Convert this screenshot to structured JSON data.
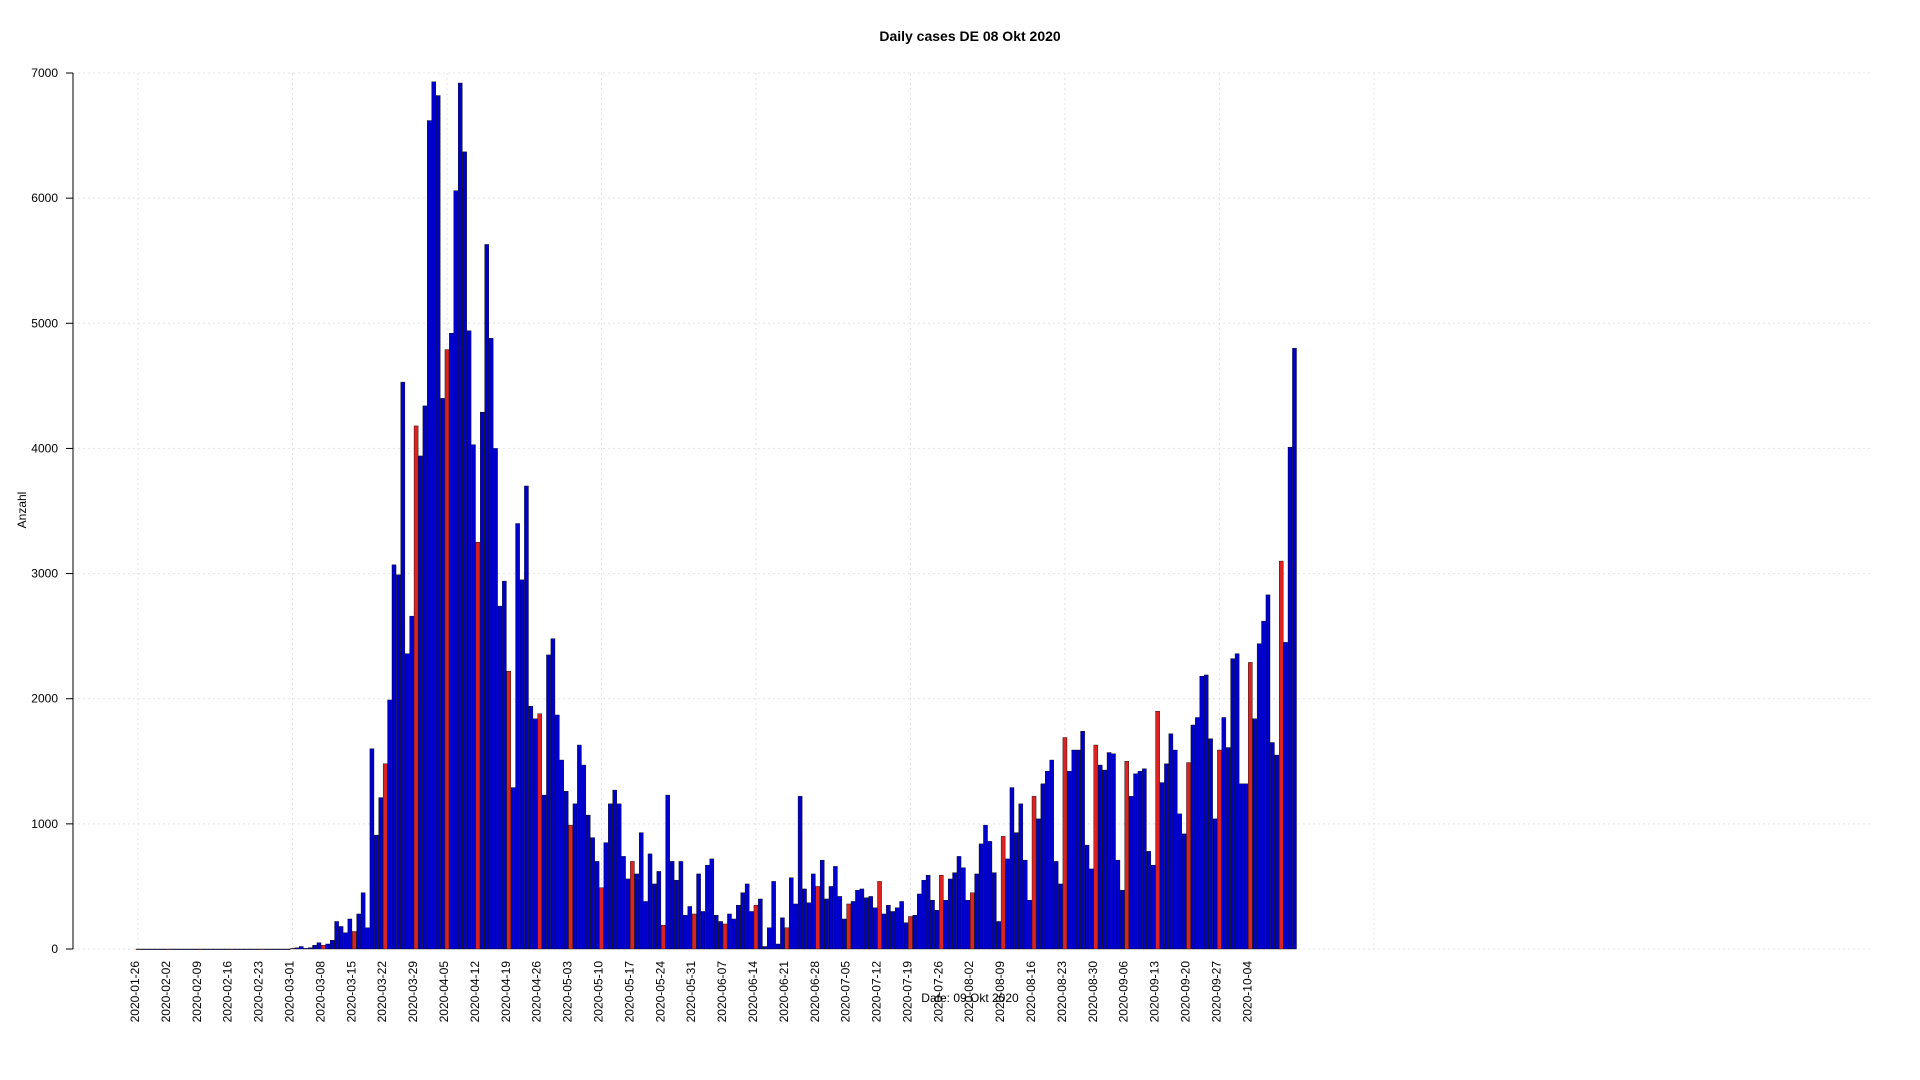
{
  "chart_data": {
    "type": "bar",
    "title": "Daily cases DE  08 Okt 2020",
    "ylabel": "Anzahl",
    "xlabel": "Date: 09 Okt 2020",
    "ylim": [
      0,
      7000
    ],
    "y_ticks": [
      0,
      1000,
      2000,
      3000,
      4000,
      5000,
      6000,
      7000
    ],
    "x_ticks": [
      "2020-01-26",
      "2020-02-02",
      "2020-02-09",
      "2020-02-16",
      "2020-02-23",
      "2020-03-01",
      "2020-03-08",
      "2020-03-15",
      "2020-03-22",
      "2020-03-29",
      "2020-04-05",
      "2020-04-12",
      "2020-04-19",
      "2020-04-26",
      "2020-05-03",
      "2020-05-10",
      "2020-05-17",
      "2020-05-24",
      "2020-05-31",
      "2020-06-07",
      "2020-06-14",
      "2020-06-21",
      "2020-06-28",
      "2020-07-05",
      "2020-07-12",
      "2020-07-19",
      "2020-07-26",
      "2020-08-02",
      "2020-08-09",
      "2020-08-16",
      "2020-08-23",
      "2020-08-30",
      "2020-09-06",
      "2020-09-13",
      "2020-09-20",
      "2020-09-27",
      "2020-10-04"
    ],
    "x_start": "2020-01-26",
    "x_end": "2020-10-08",
    "grid": true,
    "colors": {
      "weekday": "#0000cc",
      "sunday": "#dd2222",
      "edge": "#000000"
    },
    "values": [
      0,
      0,
      0,
      0,
      0,
      0,
      0,
      0,
      0,
      0,
      0,
      0,
      0,
      0,
      0,
      0,
      0,
      0,
      0,
      0,
      0,
      0,
      0,
      0,
      0,
      0,
      0,
      0,
      0,
      0,
      0,
      0,
      0,
      0,
      0,
      5,
      10,
      20,
      5,
      10,
      30,
      50,
      30,
      40,
      70,
      220,
      180,
      130,
      240,
      140,
      280,
      450,
      170,
      1600,
      910,
      1210,
      1480,
      1990,
      3070,
      2990,
      4530,
      2360,
      2660,
      4180,
      3940,
      4340,
      6620,
      6930,
      6820,
      4400,
      4790,
      4920,
      6060,
      6920,
      6370,
      4940,
      4030,
      3250,
      4290,
      5630,
      4880,
      4000,
      2740,
      2940,
      2220,
      1290,
      3400,
      2950,
      3700,
      1940,
      1840,
      1880,
      1230,
      2350,
      2480,
      1870,
      1510,
      1260,
      990,
      1160,
      1630,
      1470,
      1070,
      890,
      700,
      490,
      850,
      1160,
      1270,
      1160,
      740,
      560,
      700,
      600,
      930,
      380,
      760,
      520,
      620,
      190,
      1230,
      700,
      550,
      700,
      270,
      340,
      280,
      600,
      300,
      670,
      720,
      270,
      220,
      200,
      280,
      240,
      350,
      450,
      520,
      300,
      350,
      400,
      20,
      170,
      540,
      40,
      250,
      170,
      570,
      360,
      1220,
      480,
      370,
      600,
      500,
      710,
      400,
      500,
      660,
      420,
      240,
      360,
      380,
      470,
      480,
      410,
      420,
      330,
      540,
      280,
      350,
      300,
      330,
      380,
      210,
      260,
      270,
      440,
      550,
      590,
      390,
      310,
      590,
      390,
      560,
      610,
      740,
      650,
      390,
      450,
      600,
      840,
      990,
      860,
      610,
      220,
      900,
      720,
      1290,
      930,
      1160,
      710,
      390,
      1220,
      1040,
      1320,
      1420,
      1510,
      700,
      520,
      1690,
      1420,
      1590,
      1590,
      1740,
      830,
      640,
      1630,
      1470,
      1430,
      1570,
      1560,
      710,
      470,
      1500,
      1220,
      1400,
      1420,
      1440,
      780,
      670,
      1900,
      1330,
      1480,
      1720,
      1590,
      1080,
      920,
      1490,
      1790,
      1850,
      2180,
      2190,
      1680,
      1040,
      1590,
      1850,
      1610,
      2320,
      2360,
      1320,
      1320,
      2290,
      1840,
      2440,
      2620,
      2830,
      1650,
      1550,
      3100,
      2450,
      4010,
      4800
    ]
  }
}
